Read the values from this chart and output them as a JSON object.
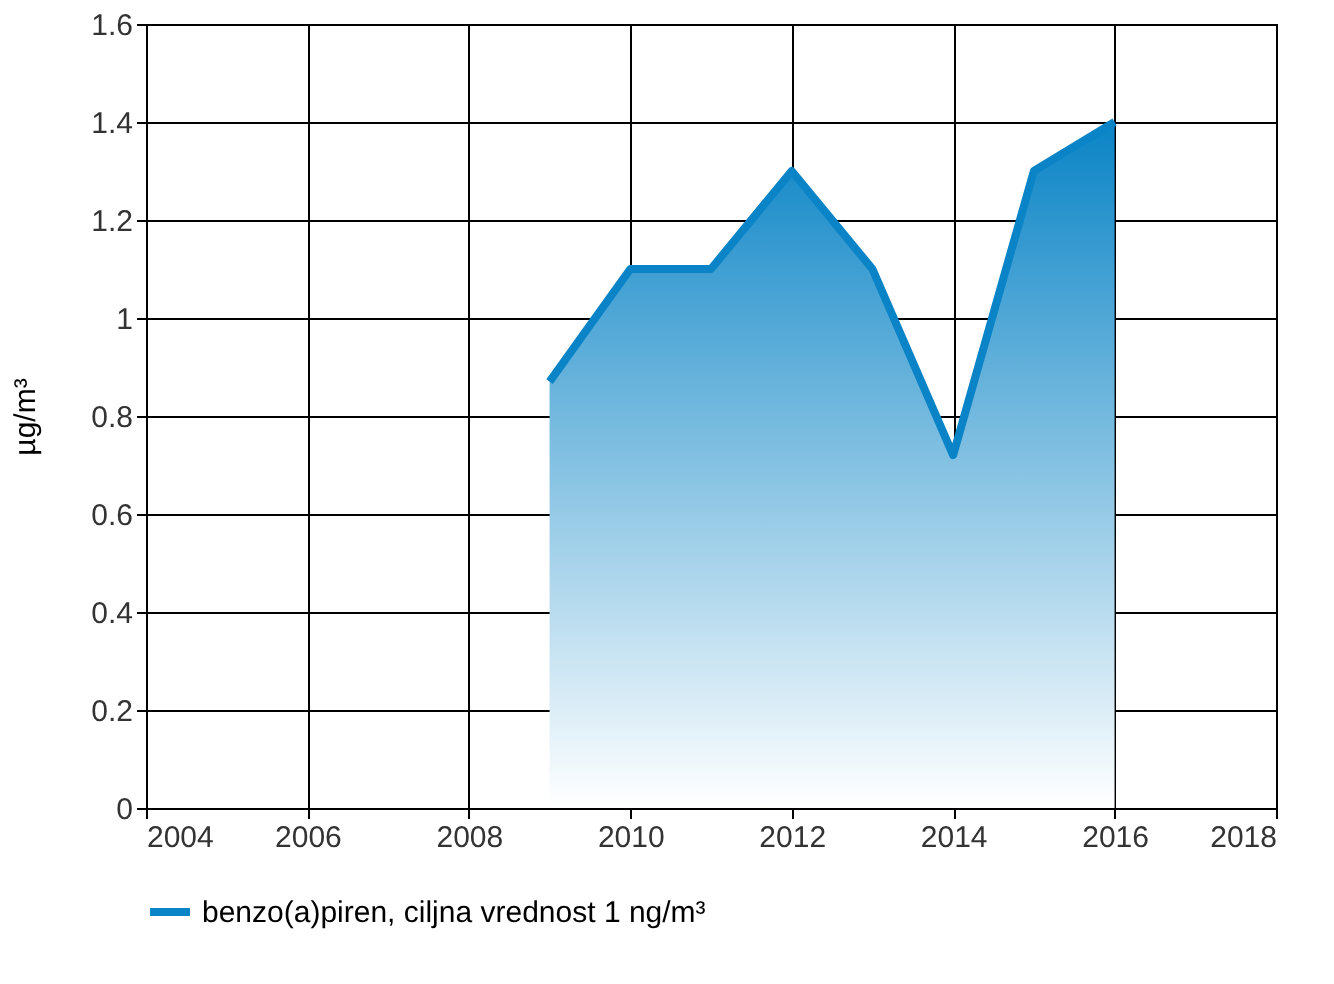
{
  "chart_data": {
    "type": "area",
    "ylabel": "µg/m³",
    "x": [
      2009,
      2010,
      2011,
      2012,
      2013,
      2014,
      2015,
      2016
    ],
    "series": [
      {
        "name": "benzo(a)piren, ciljna vrednost 1 ng/m³",
        "color": "#0a84c6",
        "values": [
          0.87,
          1.1,
          1.1,
          1.3,
          1.1,
          0.72,
          1.3,
          1.4
        ]
      }
    ],
    "xlim": [
      2004,
      2018
    ],
    "xticks": [
      2004,
      2006,
      2008,
      2010,
      2012,
      2014,
      2016,
      2018
    ],
    "ylim": [
      0,
      1.6
    ],
    "yticks": [
      0,
      0.2,
      0.4,
      0.6,
      0.8,
      1,
      1.2,
      1.4,
      1.6
    ],
    "grid": true,
    "legend": "bottom",
    "marker": "none",
    "line_style": "solid"
  }
}
